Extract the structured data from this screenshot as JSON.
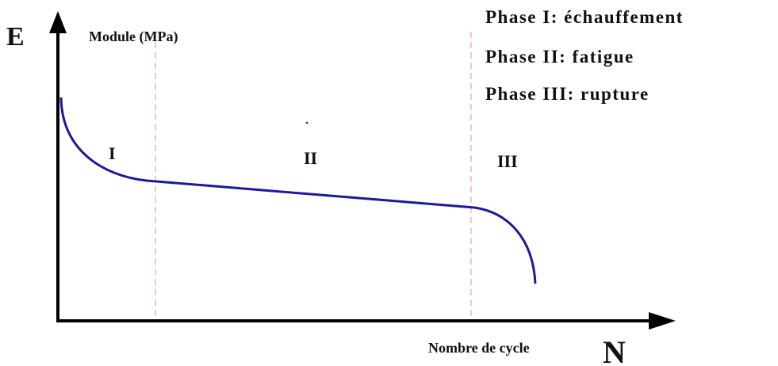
{
  "axes": {
    "y_symbol": "E",
    "y_label": "Module (MPa)",
    "x_label": "Nombre de cycle",
    "x_symbol": "N"
  },
  "legend": [
    "Phase I: échauffement",
    "Phase II: fatigue",
    "Phase III: rupture"
  ],
  "phases": [
    "I",
    "II",
    "III"
  ]
}
